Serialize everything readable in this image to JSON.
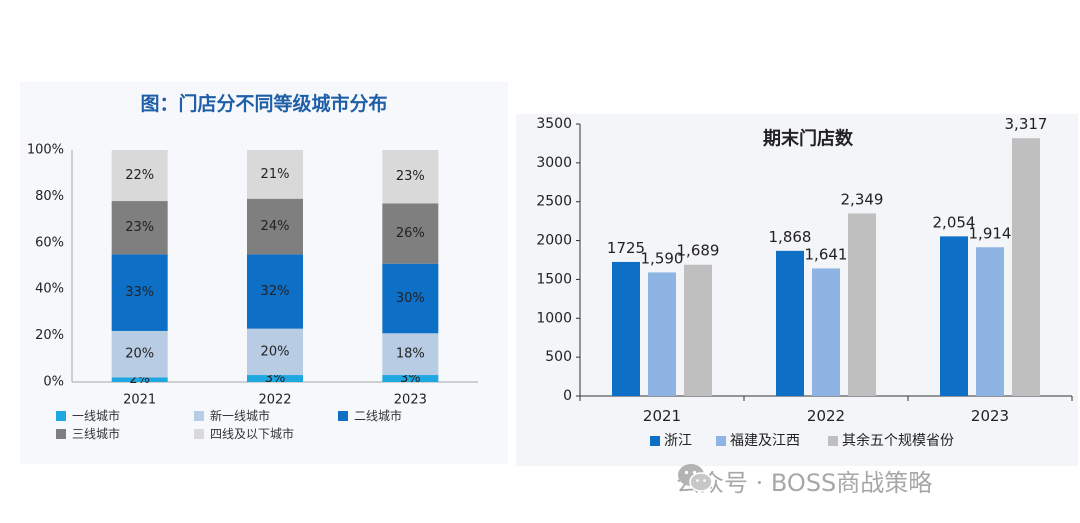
{
  "chart_data": [
    {
      "type": "bar",
      "stacked": true,
      "percent": true,
      "title": "图：门店分不同等级城市分布",
      "categories": [
        "2021",
        "2022",
        "2023"
      ],
      "ylim": [
        0,
        100
      ],
      "yticks": [
        "0%",
        "20%",
        "40%",
        "60%",
        "80%",
        "100%"
      ],
      "series": [
        {
          "name": "一线城市",
          "values": [
            2,
            3,
            3
          ],
          "labels": [
            "2%",
            "3%",
            "3%"
          ],
          "color": "#1ea7e1"
        },
        {
          "name": "新一线城市",
          "values": [
            20,
            20,
            18
          ],
          "labels": [
            "20%",
            "20%",
            "18%"
          ],
          "color": "#b8cce4"
        },
        {
          "name": "二线城市",
          "values": [
            33,
            32,
            30
          ],
          "labels": [
            "33%",
            "32%",
            "30%"
          ],
          "color": "#0e6fc7"
        },
        {
          "name": "三线城市",
          "values": [
            23,
            24,
            26
          ],
          "labels": [
            "23%",
            "24%",
            "26%"
          ],
          "color": "#7f7f7f"
        },
        {
          "name": "四线及以下城市",
          "values": [
            22,
            21,
            23
          ],
          "labels": [
            "22%",
            "21%",
            "23%"
          ],
          "color": "#d9d9d9"
        }
      ],
      "legend": "bottom"
    },
    {
      "type": "bar",
      "title": "期末门店数",
      "categories": [
        "2021",
        "2022",
        "2023"
      ],
      "ylim": [
        0,
        3500
      ],
      "yticks": [
        "0",
        "500",
        "1000",
        "1500",
        "2000",
        "2500",
        "3000",
        "3500"
      ],
      "series": [
        {
          "name": "浙江",
          "values": [
            1725,
            1868,
            2054
          ],
          "labels": [
            "1725",
            "1,868",
            "2,054"
          ],
          "color": "#0e6fc7"
        },
        {
          "name": "福建及江西",
          "values": [
            1590,
            1641,
            1914
          ],
          "labels": [
            "1,590",
            "1,641",
            "1,914"
          ],
          "color": "#8db4e2"
        },
        {
          "name": "其余五个规模省份",
          "values": [
            1689,
            2349,
            3317
          ],
          "labels": [
            "1,689",
            "2,349",
            "3,317"
          ],
          "color": "#bfbfbf"
        }
      ],
      "legend": "bottom"
    }
  ],
  "watermark": {
    "text": "公众号 · BOSS商战策略"
  }
}
